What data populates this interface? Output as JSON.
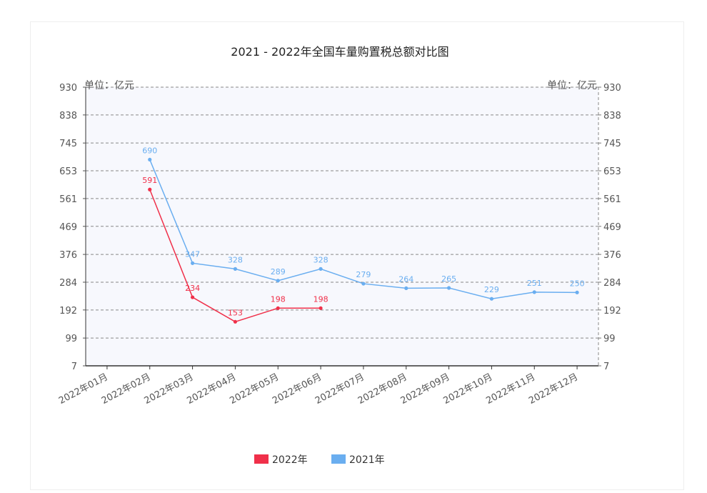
{
  "chart_data": {
    "type": "line",
    "title": "2021 - 2022年全国车量购置税总额对比图",
    "unit_left": "单位：亿元",
    "unit_right": "单位：亿元",
    "categories": [
      "2022年01月",
      "2022年02月",
      "2022年03月",
      "2022年04月",
      "2022年05月",
      "2022年06月",
      "2022年07月",
      "2022年08月",
      "2022年09月",
      "2022年10月",
      "2022年11月",
      "2022年12月"
    ],
    "y_ticks": [
      7,
      99,
      192,
      284,
      376,
      469,
      561,
      653,
      745,
      838,
      930
    ],
    "ylim": [
      7,
      930
    ],
    "grid": true,
    "legend_position": "bottom",
    "series": [
      {
        "name": "2022年",
        "color": "#f0304a",
        "values": [
          null,
          591,
          234,
          153,
          198,
          198,
          null,
          null,
          null,
          null,
          null,
          null
        ]
      },
      {
        "name": "2021年",
        "color": "#6aaef0",
        "values": [
          null,
          690,
          347,
          328,
          289,
          328,
          279,
          264,
          265,
          229,
          251,
          250
        ]
      }
    ]
  }
}
